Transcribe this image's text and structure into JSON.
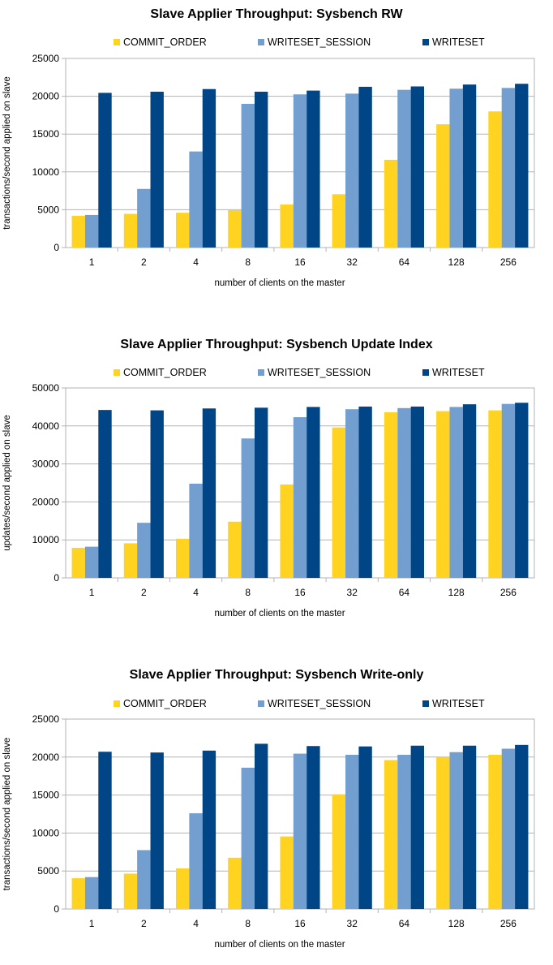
{
  "colors": {
    "COMMIT_ORDER": "#ffd320",
    "WRITESET_SESSION": "#729fcf",
    "WRITESET": "#004586"
  },
  "chart_data": [
    {
      "type": "bar",
      "title": "Slave Applier Throughput: Sysbench RW",
      "xlabel": "number of clients on the master",
      "ylabel": "transactions/second applied on slave",
      "ylim": [
        0,
        25000
      ],
      "yticks": [
        0,
        5000,
        10000,
        15000,
        20000,
        25000
      ],
      "legend": "top",
      "categories": [
        "1",
        "2",
        "4",
        "8",
        "16",
        "32",
        "64",
        "128",
        "256"
      ],
      "series": [
        {
          "name": "COMMIT_ORDER",
          "values": [
            4200,
            4450,
            4600,
            4950,
            5700,
            7050,
            11600,
            16300,
            18000
          ]
        },
        {
          "name": "WRITESET_SESSION",
          "values": [
            4300,
            7750,
            12700,
            19000,
            20250,
            20350,
            20850,
            21000,
            21100
          ]
        },
        {
          "name": "WRITESET",
          "values": [
            20450,
            20600,
            20950,
            20600,
            20750,
            21250,
            21300,
            21550,
            21650
          ]
        }
      ]
    },
    {
      "type": "bar",
      "title": "Slave Applier Throughput: Sysbench Update Index",
      "xlabel": "number of clients on the master",
      "ylabel": "updates/second applied on slave",
      "ylim": [
        0,
        50000
      ],
      "yticks": [
        0,
        10000,
        20000,
        30000,
        40000,
        50000
      ],
      "legend": "top",
      "categories": [
        "1",
        "2",
        "4",
        "8",
        "16",
        "32",
        "64",
        "128",
        "256"
      ],
      "series": [
        {
          "name": "COMMIT_ORDER",
          "values": [
            7900,
            9100,
            10300,
            14800,
            24600,
            39600,
            43600,
            43900,
            44100
          ]
        },
        {
          "name": "WRITESET_SESSION",
          "values": [
            8200,
            14500,
            24800,
            36700,
            42300,
            44400,
            44700,
            45000,
            45800
          ]
        },
        {
          "name": "WRITESET",
          "values": [
            44200,
            44100,
            44600,
            44800,
            45000,
            45100,
            45100,
            45700,
            46100
          ]
        }
      ]
    },
    {
      "type": "bar",
      "title": "Slave Applier Throughput: Sysbench Write-only",
      "xlabel": "number of clients on the master",
      "ylabel": "transactions/second applied on slave",
      "ylim": [
        0,
        25000
      ],
      "yticks": [
        0,
        5000,
        10000,
        15000,
        20000,
        25000
      ],
      "legend": "top",
      "categories": [
        "1",
        "2",
        "4",
        "8",
        "16",
        "32",
        "64",
        "128",
        "256"
      ],
      "series": [
        {
          "name": "COMMIT_ORDER",
          "values": [
            4050,
            4650,
            5350,
            6750,
            9550,
            15100,
            19600,
            20000,
            20300
          ]
        },
        {
          "name": "WRITESET_SESSION",
          "values": [
            4200,
            7750,
            12600,
            18600,
            20450,
            20300,
            20300,
            20650,
            21100
          ]
        },
        {
          "name": "WRITESET",
          "values": [
            20700,
            20600,
            20850,
            21750,
            21450,
            21400,
            21500,
            21500,
            21600
          ]
        }
      ]
    }
  ]
}
